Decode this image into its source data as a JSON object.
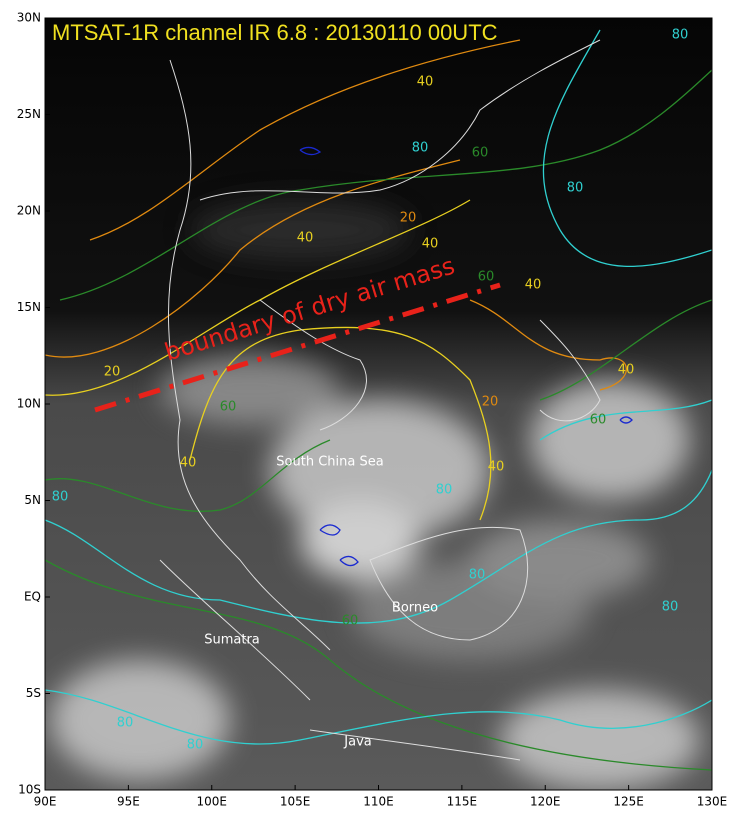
{
  "map": {
    "title": "MTSAT-1R channel IR 6.8 : 20130110 00UTC",
    "annotation": "boundary of dry air mass",
    "lon_range": [
      90,
      130
    ],
    "lat_range": [
      -10,
      30
    ],
    "lon_ticks": [
      {
        "value": 90,
        "label": "90E"
      },
      {
        "value": 95,
        "label": "95E"
      },
      {
        "value": 100,
        "label": "100E"
      },
      {
        "value": 105,
        "label": "105E"
      },
      {
        "value": 110,
        "label": "110E"
      },
      {
        "value": 115,
        "label": "115E"
      },
      {
        "value": 120,
        "label": "120E"
      },
      {
        "value": 125,
        "label": "125E"
      },
      {
        "value": 130,
        "label": "130E"
      }
    ],
    "lat_ticks": [
      {
        "value": 30,
        "label": "30N"
      },
      {
        "value": 25,
        "label": "25N"
      },
      {
        "value": 20,
        "label": "20N"
      },
      {
        "value": 15,
        "label": "15N"
      },
      {
        "value": 10,
        "label": "10N"
      },
      {
        "value": 5,
        "label": "5N"
      },
      {
        "value": 0,
        "label": "EQ"
      },
      {
        "value": -5,
        "label": "5S"
      },
      {
        "value": -10,
        "label": "10S"
      }
    ],
    "place_labels": [
      "South China Sea",
      "Borneo",
      "Sumatra",
      "Java"
    ],
    "contour_labels": [
      "80",
      "40",
      "80",
      "60",
      "40",
      "80",
      "20",
      "40",
      "20",
      "40",
      "60",
      "40",
      "20",
      "40",
      "40",
      "60",
      "80",
      "60",
      "80",
      "80",
      "80",
      "60",
      "80",
      "80"
    ]
  }
}
